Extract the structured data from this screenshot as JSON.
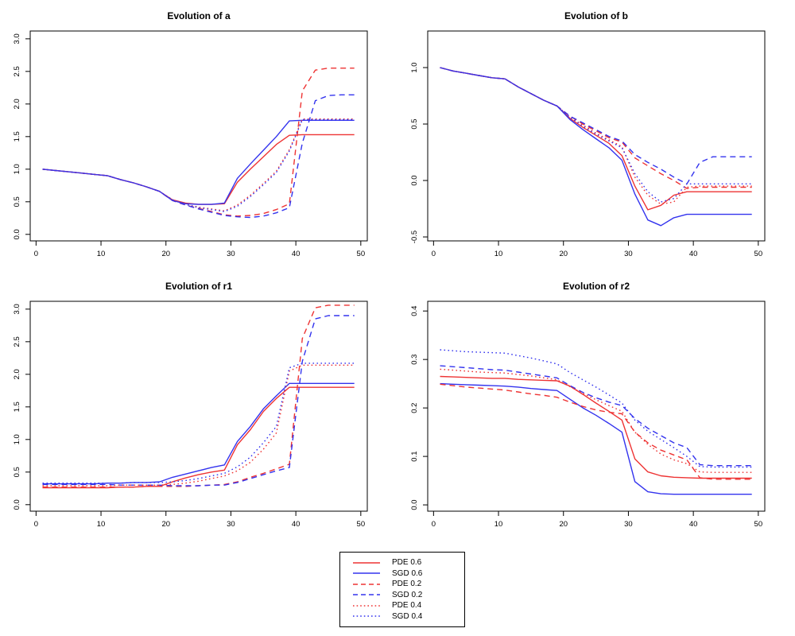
{
  "page": {
    "background": "#ffffff"
  },
  "colors": {
    "red": "#ee3333",
    "blue": "#3333ee",
    "axis": "#000000"
  },
  "legend": {
    "items": [
      {
        "label": "PDE 0.6",
        "color": "red",
        "style": "solid"
      },
      {
        "label": "SGD 0.6",
        "color": "blue",
        "style": "solid"
      },
      {
        "label": "PDE 0.2",
        "color": "red",
        "style": "dashed"
      },
      {
        "label": "SGD 0.2",
        "color": "blue",
        "style": "dashed"
      },
      {
        "label": "PDE 0.4",
        "color": "red",
        "style": "dotted"
      },
      {
        "label": "SGD 0.4",
        "color": "blue",
        "style": "dotted"
      }
    ]
  },
  "chart_data": [
    {
      "type": "line",
      "title": "Evolution of a",
      "xlabel": "",
      "ylabel": "",
      "grid": false,
      "legend_position": "bottom-center-of-figure",
      "x": [
        1,
        3,
        5,
        7,
        9,
        11,
        13,
        15,
        17,
        19,
        21,
        23,
        25,
        27,
        29,
        31,
        33,
        35,
        37,
        39,
        41,
        43,
        45,
        47,
        49
      ],
      "xlim": [
        -0.9,
        51
      ],
      "ylim": [
        -0.1,
        3.12
      ],
      "xticks": {
        "values": [
          0,
          10,
          20,
          30,
          40,
          50
        ],
        "labels": [
          "0",
          "10",
          "20",
          "30",
          "40",
          "50"
        ]
      },
      "yticks": {
        "values": [
          0,
          0.5,
          1,
          1.5,
          2,
          2.5,
          3
        ],
        "labels": [
          "0.0",
          "0.5",
          "1.0",
          "1.5",
          "2.0",
          "2.5",
          "3.0"
        ]
      },
      "series": [
        {
          "name": "PDE 0.6",
          "color": "red",
          "style": "solid",
          "values": [
            1.0,
            0.98,
            0.96,
            0.94,
            0.92,
            0.9,
            0.84,
            0.79,
            0.73,
            0.66,
            0.53,
            0.48,
            0.46,
            0.46,
            0.47,
            0.8,
            1.0,
            1.19,
            1.38,
            1.52,
            1.53,
            1.53,
            1.53,
            1.53,
            1.53
          ]
        },
        {
          "name": "SGD 0.6",
          "color": "blue",
          "style": "solid",
          "values": [
            1.0,
            0.98,
            0.96,
            0.94,
            0.92,
            0.9,
            0.84,
            0.79,
            0.73,
            0.66,
            0.52,
            0.47,
            0.46,
            0.46,
            0.48,
            0.86,
            1.08,
            1.29,
            1.5,
            1.74,
            1.75,
            1.75,
            1.75,
            1.75,
            1.75
          ]
        },
        {
          "name": "PDE 0.2",
          "color": "red",
          "style": "dashed",
          "values": [
            1.0,
            0.98,
            0.96,
            0.94,
            0.92,
            0.9,
            0.84,
            0.79,
            0.73,
            0.66,
            0.52,
            0.45,
            0.4,
            0.35,
            0.3,
            0.28,
            0.29,
            0.32,
            0.38,
            0.47,
            2.2,
            2.52,
            2.55,
            2.55,
            2.55
          ]
        },
        {
          "name": "SGD 0.2",
          "color": "blue",
          "style": "dashed",
          "values": [
            1.0,
            0.98,
            0.96,
            0.94,
            0.92,
            0.9,
            0.84,
            0.79,
            0.73,
            0.66,
            0.52,
            0.45,
            0.39,
            0.34,
            0.29,
            0.27,
            0.26,
            0.28,
            0.33,
            0.41,
            1.4,
            2.05,
            2.13,
            2.14,
            2.14
          ]
        },
        {
          "name": "PDE 0.4",
          "color": "red",
          "style": "dotted",
          "values": [
            1.0,
            0.98,
            0.96,
            0.94,
            0.92,
            0.9,
            0.84,
            0.79,
            0.73,
            0.66,
            0.53,
            0.46,
            0.42,
            0.39,
            0.36,
            0.45,
            0.6,
            0.78,
            0.97,
            1.3,
            1.77,
            1.77,
            1.77,
            1.77,
            1.77
          ]
        },
        {
          "name": "SGD 0.4",
          "color": "blue",
          "style": "dotted",
          "values": [
            1.0,
            0.98,
            0.96,
            0.94,
            0.92,
            0.9,
            0.84,
            0.79,
            0.73,
            0.66,
            0.53,
            0.46,
            0.41,
            0.38,
            0.35,
            0.43,
            0.58,
            0.76,
            0.95,
            1.28,
            1.76,
            1.76,
            1.76,
            1.76,
            1.76
          ]
        }
      ]
    },
    {
      "type": "line",
      "title": "Evolution of b",
      "xlabel": "",
      "ylabel": "",
      "grid": false,
      "x": [
        1,
        3,
        5,
        7,
        9,
        11,
        13,
        15,
        17,
        19,
        21,
        23,
        25,
        27,
        29,
        31,
        33,
        35,
        37,
        39,
        41,
        43,
        45,
        47,
        49
      ],
      "xlim": [
        -0.9,
        51
      ],
      "ylim": [
        -0.535,
        1.324
      ],
      "xticks": {
        "values": [
          0,
          10,
          20,
          30,
          40,
          50
        ],
        "labels": [
          "0",
          "10",
          "20",
          "30",
          "40",
          "50"
        ]
      },
      "yticks": {
        "values": [
          -0.5,
          0,
          0.5,
          1
        ],
        "labels": [
          "-0.5",
          "0.0",
          "0.5",
          "1.0"
        ]
      },
      "series": [
        {
          "name": "PDE 0.6",
          "color": "red",
          "style": "solid",
          "values": [
            1.0,
            0.97,
            0.95,
            0.93,
            0.91,
            0.9,
            0.83,
            0.77,
            0.71,
            0.66,
            0.55,
            0.47,
            0.4,
            0.33,
            0.22,
            -0.05,
            -0.26,
            -0.22,
            -0.13,
            -0.1,
            -0.1,
            -0.1,
            -0.1,
            -0.1,
            -0.1
          ]
        },
        {
          "name": "SGD 0.6",
          "color": "blue",
          "style": "solid",
          "values": [
            1.0,
            0.97,
            0.95,
            0.93,
            0.91,
            0.9,
            0.83,
            0.77,
            0.71,
            0.66,
            0.54,
            0.45,
            0.37,
            0.29,
            0.18,
            -0.12,
            -0.35,
            -0.4,
            -0.33,
            -0.3,
            -0.3,
            -0.3,
            -0.3,
            -0.3,
            -0.3
          ]
        },
        {
          "name": "PDE 0.2",
          "color": "red",
          "style": "dashed",
          "values": [
            1.0,
            0.97,
            0.95,
            0.93,
            0.91,
            0.9,
            0.83,
            0.77,
            0.71,
            0.66,
            0.57,
            0.5,
            0.44,
            0.38,
            0.34,
            0.2,
            0.13,
            0.06,
            0.0,
            -0.07,
            -0.06,
            -0.06,
            -0.06,
            -0.06,
            -0.06
          ]
        },
        {
          "name": "SGD 0.2",
          "color": "blue",
          "style": "dashed",
          "values": [
            1.0,
            0.97,
            0.95,
            0.93,
            0.91,
            0.9,
            0.83,
            0.77,
            0.71,
            0.66,
            0.57,
            0.51,
            0.45,
            0.39,
            0.35,
            0.23,
            0.16,
            0.1,
            0.03,
            -0.03,
            0.16,
            0.21,
            0.21,
            0.21,
            0.21
          ]
        },
        {
          "name": "PDE 0.4",
          "color": "red",
          "style": "dotted",
          "values": [
            1.0,
            0.97,
            0.95,
            0.93,
            0.91,
            0.9,
            0.83,
            0.77,
            0.71,
            0.66,
            0.56,
            0.49,
            0.42,
            0.36,
            0.3,
            0.03,
            -0.13,
            -0.21,
            -0.19,
            -0.06,
            -0.05,
            -0.05,
            -0.05,
            -0.05,
            -0.05
          ]
        },
        {
          "name": "SGD 0.4",
          "color": "blue",
          "style": "dotted",
          "values": [
            1.0,
            0.97,
            0.95,
            0.93,
            0.91,
            0.9,
            0.83,
            0.77,
            0.71,
            0.66,
            0.56,
            0.48,
            0.41,
            0.35,
            0.29,
            0.06,
            -0.1,
            -0.19,
            -0.16,
            -0.03,
            -0.03,
            -0.03,
            -0.03,
            -0.03,
            -0.03
          ]
        }
      ]
    },
    {
      "type": "line",
      "title": "Evolution of r1",
      "xlabel": "",
      "ylabel": "",
      "grid": false,
      "x": [
        1,
        3,
        5,
        7,
        9,
        11,
        13,
        15,
        17,
        19,
        21,
        23,
        25,
        27,
        29,
        31,
        33,
        35,
        37,
        39,
        41,
        43,
        45,
        47,
        49
      ],
      "xlim": [
        -0.9,
        51
      ],
      "ylim": [
        -0.1,
        3.12
      ],
      "xticks": {
        "values": [
          0,
          10,
          20,
          30,
          40,
          50
        ],
        "labels": [
          "0",
          "10",
          "20",
          "30",
          "40",
          "50"
        ]
      },
      "yticks": {
        "values": [
          0,
          0.5,
          1,
          1.5,
          2,
          2.5,
          3
        ],
        "labels": [
          "0.0",
          "0.5",
          "1.0",
          "1.5",
          "2.0",
          "2.5",
          "3.0"
        ]
      },
      "series": [
        {
          "name": "PDE 0.6",
          "color": "red",
          "style": "solid",
          "values": [
            0.26,
            0.26,
            0.26,
            0.26,
            0.26,
            0.26,
            0.27,
            0.27,
            0.28,
            0.28,
            0.35,
            0.41,
            0.46,
            0.5,
            0.53,
            0.92,
            1.15,
            1.43,
            1.63,
            1.8,
            1.8,
            1.8,
            1.8,
            1.8,
            1.8
          ]
        },
        {
          "name": "SGD 0.6",
          "color": "blue",
          "style": "solid",
          "values": [
            0.32,
            0.32,
            0.32,
            0.32,
            0.32,
            0.33,
            0.33,
            0.34,
            0.34,
            0.35,
            0.42,
            0.47,
            0.52,
            0.57,
            0.61,
            0.97,
            1.2,
            1.47,
            1.67,
            1.86,
            1.86,
            1.86,
            1.86,
            1.86,
            1.86
          ]
        },
        {
          "name": "PDE 0.2",
          "color": "red",
          "style": "dashed",
          "values": [
            0.27,
            0.27,
            0.27,
            0.27,
            0.27,
            0.27,
            0.27,
            0.27,
            0.28,
            0.28,
            0.28,
            0.28,
            0.29,
            0.3,
            0.31,
            0.35,
            0.42,
            0.48,
            0.55,
            0.62,
            2.55,
            3.02,
            3.06,
            3.06,
            3.06
          ]
        },
        {
          "name": "SGD 0.2",
          "color": "blue",
          "style": "dashed",
          "values": [
            0.31,
            0.31,
            0.31,
            0.31,
            0.31,
            0.31,
            0.3,
            0.3,
            0.3,
            0.3,
            0.29,
            0.29,
            0.29,
            0.3,
            0.3,
            0.34,
            0.4,
            0.46,
            0.52,
            0.57,
            2.2,
            2.85,
            2.9,
            2.9,
            2.9
          ]
        },
        {
          "name": "PDE 0.4",
          "color": "red",
          "style": "dotted",
          "values": [
            0.29,
            0.29,
            0.29,
            0.29,
            0.29,
            0.29,
            0.3,
            0.3,
            0.3,
            0.3,
            0.31,
            0.33,
            0.36,
            0.4,
            0.44,
            0.52,
            0.65,
            0.85,
            1.1,
            2.05,
            2.14,
            2.14,
            2.14,
            2.14,
            2.14
          ]
        },
        {
          "name": "SGD 0.4",
          "color": "blue",
          "style": "dotted",
          "values": [
            0.33,
            0.33,
            0.33,
            0.33,
            0.33,
            0.33,
            0.33,
            0.34,
            0.34,
            0.34,
            0.35,
            0.37,
            0.4,
            0.44,
            0.48,
            0.58,
            0.73,
            0.95,
            1.2,
            2.1,
            2.17,
            2.17,
            2.17,
            2.17,
            2.17
          ]
        }
      ]
    },
    {
      "type": "line",
      "title": "Evolution of r2",
      "xlabel": "",
      "ylabel": "",
      "grid": false,
      "x": [
        1,
        3,
        5,
        7,
        9,
        11,
        13,
        15,
        17,
        19,
        21,
        23,
        25,
        27,
        29,
        31,
        33,
        35,
        37,
        39,
        41,
        43,
        45,
        47,
        49
      ],
      "xlim": [
        -0.9,
        51
      ],
      "ylim": [
        -0.013,
        0.42
      ],
      "xticks": {
        "values": [
          0,
          10,
          20,
          30,
          40,
          50
        ],
        "labels": [
          "0",
          "10",
          "20",
          "30",
          "40",
          "50"
        ]
      },
      "yticks": {
        "values": [
          0,
          0.1,
          0.2,
          0.3,
          0.4
        ],
        "labels": [
          "0.0",
          "0.1",
          "0.2",
          "0.3",
          "0.4"
        ]
      },
      "series": [
        {
          "name": "PDE 0.6",
          "color": "red",
          "style": "solid",
          "values": [
            0.265,
            0.264,
            0.263,
            0.262,
            0.261,
            0.261,
            0.259,
            0.258,
            0.257,
            0.256,
            0.245,
            0.228,
            0.21,
            0.193,
            0.175,
            0.095,
            0.068,
            0.06,
            0.057,
            0.056,
            0.055,
            0.055,
            0.055,
            0.055,
            0.055
          ]
        },
        {
          "name": "SGD 0.6",
          "color": "blue",
          "style": "solid",
          "values": [
            0.25,
            0.249,
            0.248,
            0.247,
            0.246,
            0.245,
            0.243,
            0.24,
            0.238,
            0.236,
            0.218,
            0.2,
            0.185,
            0.168,
            0.15,
            0.048,
            0.027,
            0.023,
            0.022,
            0.022,
            0.022,
            0.022,
            0.022,
            0.022,
            0.022
          ]
        },
        {
          "name": "PDE 0.2",
          "color": "red",
          "style": "dashed",
          "values": [
            0.249,
            0.246,
            0.243,
            0.241,
            0.239,
            0.237,
            0.233,
            0.229,
            0.226,
            0.222,
            0.212,
            0.203,
            0.196,
            0.191,
            0.188,
            0.15,
            0.128,
            0.113,
            0.103,
            0.093,
            0.056,
            0.053,
            0.053,
            0.053,
            0.053
          ]
        },
        {
          "name": "SGD 0.2",
          "color": "blue",
          "style": "dashed",
          "values": [
            0.287,
            0.285,
            0.283,
            0.281,
            0.279,
            0.278,
            0.274,
            0.27,
            0.266,
            0.262,
            0.246,
            0.232,
            0.221,
            0.212,
            0.205,
            0.178,
            0.158,
            0.143,
            0.128,
            0.118,
            0.083,
            0.081,
            0.081,
            0.081,
            0.081
          ]
        },
        {
          "name": "PDE 0.4",
          "color": "red",
          "style": "dotted",
          "values": [
            0.28,
            0.278,
            0.276,
            0.274,
            0.273,
            0.272,
            0.269,
            0.266,
            0.262,
            0.258,
            0.244,
            0.23,
            0.217,
            0.205,
            0.193,
            0.15,
            0.125,
            0.105,
            0.093,
            0.085,
            0.068,
            0.067,
            0.067,
            0.067,
            0.067
          ]
        },
        {
          "name": "SGD 0.4",
          "color": "blue",
          "style": "dotted",
          "values": [
            0.32,
            0.318,
            0.316,
            0.315,
            0.314,
            0.313,
            0.308,
            0.303,
            0.297,
            0.291,
            0.273,
            0.258,
            0.243,
            0.227,
            0.21,
            0.175,
            0.152,
            0.135,
            0.118,
            0.1,
            0.079,
            0.078,
            0.078,
            0.078,
            0.078
          ]
        }
      ]
    }
  ]
}
